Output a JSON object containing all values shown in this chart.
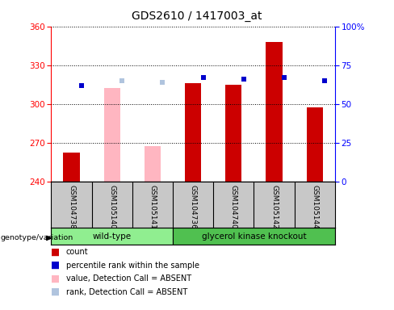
{
  "title": "GDS2610 / 1417003_at",
  "samples": [
    "GSM104738",
    "GSM105140",
    "GSM105141",
    "GSM104736",
    "GSM104740",
    "GSM105142",
    "GSM105144"
  ],
  "ymin": 240,
  "ymax": 360,
  "yticks": [
    240,
    270,
    300,
    330,
    360
  ],
  "y2ticks": [
    0,
    25,
    50,
    75,
    100
  ],
  "y2ticklabels": [
    "0",
    "25",
    "50",
    "75",
    "100%"
  ],
  "count_values": [
    262,
    312,
    267,
    316,
    315,
    348,
    297
  ],
  "rank_values": [
    62,
    65,
    64,
    67,
    66,
    67,
    65
  ],
  "is_absent": [
    false,
    true,
    true,
    false,
    false,
    false,
    false
  ],
  "count_color": "#CC0000",
  "rank_color": "#0000CC",
  "absent_value_color": "#FFB6C1",
  "absent_rank_color": "#B0C4DE",
  "wt_indices": [
    0,
    1,
    2
  ],
  "gk_indices": [
    3,
    4,
    5,
    6
  ],
  "wt_color": "#90EE90",
  "gk_color": "#50C050",
  "legend_items": [
    {
      "label": "count",
      "color": "#CC0000"
    },
    {
      "label": "percentile rank within the sample",
      "color": "#0000CC"
    },
    {
      "label": "value, Detection Call = ABSENT",
      "color": "#FFB6C1"
    },
    {
      "label": "rank, Detection Call = ABSENT",
      "color": "#B0C4DE"
    }
  ]
}
